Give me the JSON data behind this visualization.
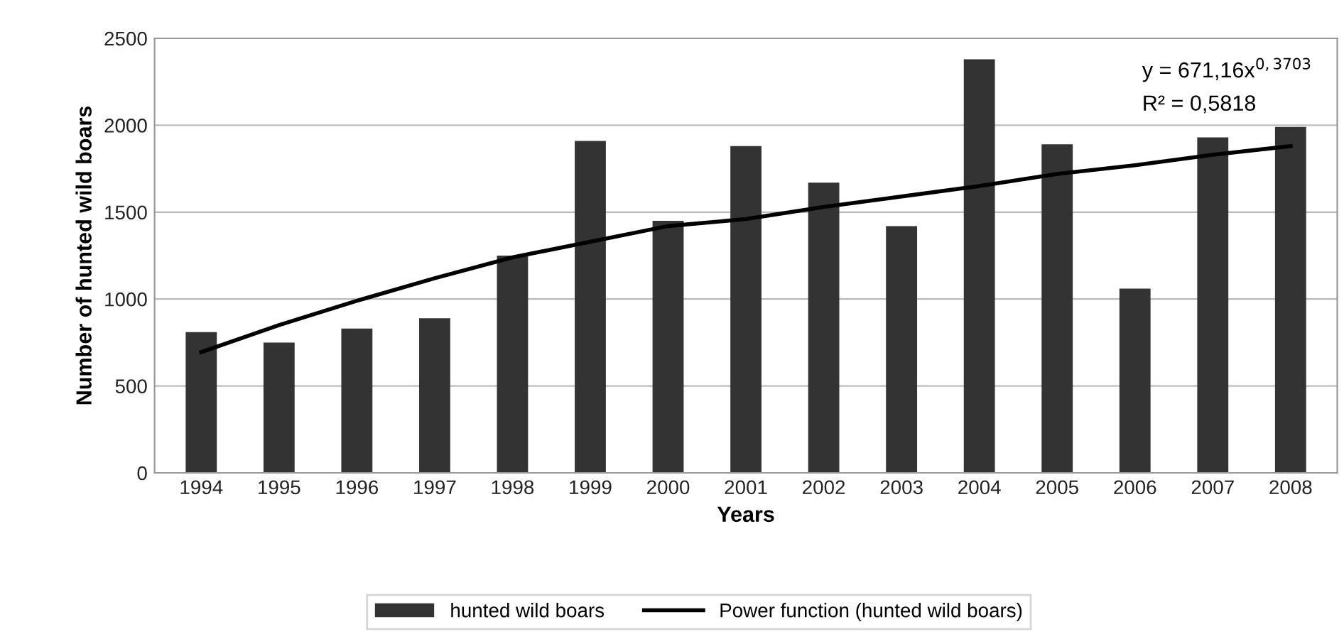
{
  "chart_data": {
    "type": "bar",
    "xlabel": "Years",
    "ylabel": "Number of hunted wild boars",
    "categories": [
      "1994",
      "1995",
      "1996",
      "1997",
      "1998",
      "1999",
      "2000",
      "2001",
      "2002",
      "2003",
      "2004",
      "2005",
      "2006",
      "2007",
      "2008"
    ],
    "series": [
      {
        "name": "hunted wild boars",
        "color": "#333333",
        "values": [
          810,
          750,
          830,
          890,
          1250,
          1910,
          1450,
          1880,
          1670,
          1420,
          2380,
          1890,
          1060,
          1930,
          1990
        ]
      },
      {
        "name": "Power function (hunted wild boars)",
        "type": "line",
        "color": "#000000",
        "values": [
          695,
          850,
          990,
          1120,
          1240,
          1330,
          1420,
          1460,
          1530,
          1590,
          1650,
          1720,
          1770,
          1830,
          1880
        ]
      }
    ],
    "ylim": [
      0,
      2500
    ],
    "yticks": [
      0,
      500,
      1000,
      1500,
      2000,
      2500
    ],
    "grid": "y",
    "legend": "bottom",
    "annotations": [
      "y = 671,16x$^{0,3703}$",
      "R² = 0,5818"
    ]
  }
}
